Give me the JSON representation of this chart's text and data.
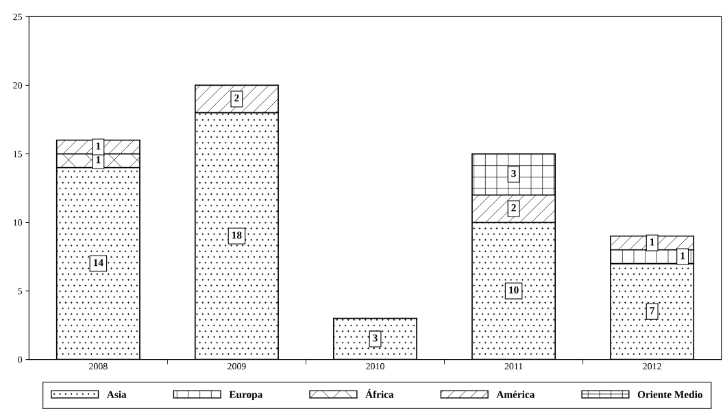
{
  "chart_data": {
    "type": "bar",
    "stacked": true,
    "categories": [
      "2008",
      "2009",
      "2010",
      "2011",
      "2012"
    ],
    "series": [
      {
        "name": "Asia",
        "color": "#000000",
        "values": [
          14,
          18,
          3,
          10,
          7
        ]
      },
      {
        "name": "Europa",
        "color": "#000000",
        "values": [
          null,
          null,
          null,
          null,
          1
        ]
      },
      {
        "name": "África",
        "color": "#000000",
        "values": [
          1,
          null,
          null,
          null,
          null
        ]
      },
      {
        "name": "América",
        "color": "#000000",
        "values": [
          1,
          2,
          null,
          2,
          1
        ]
      },
      {
        "name": "Oriente Medio",
        "color": "#000000",
        "values": [
          null,
          null,
          null,
          3,
          null
        ]
      }
    ],
    "ylim": [
      0,
      25
    ],
    "yticks": [
      0,
      5,
      10,
      15,
      20,
      25
    ],
    "grid": false,
    "legend": "bottom",
    "data_labels": true
  }
}
